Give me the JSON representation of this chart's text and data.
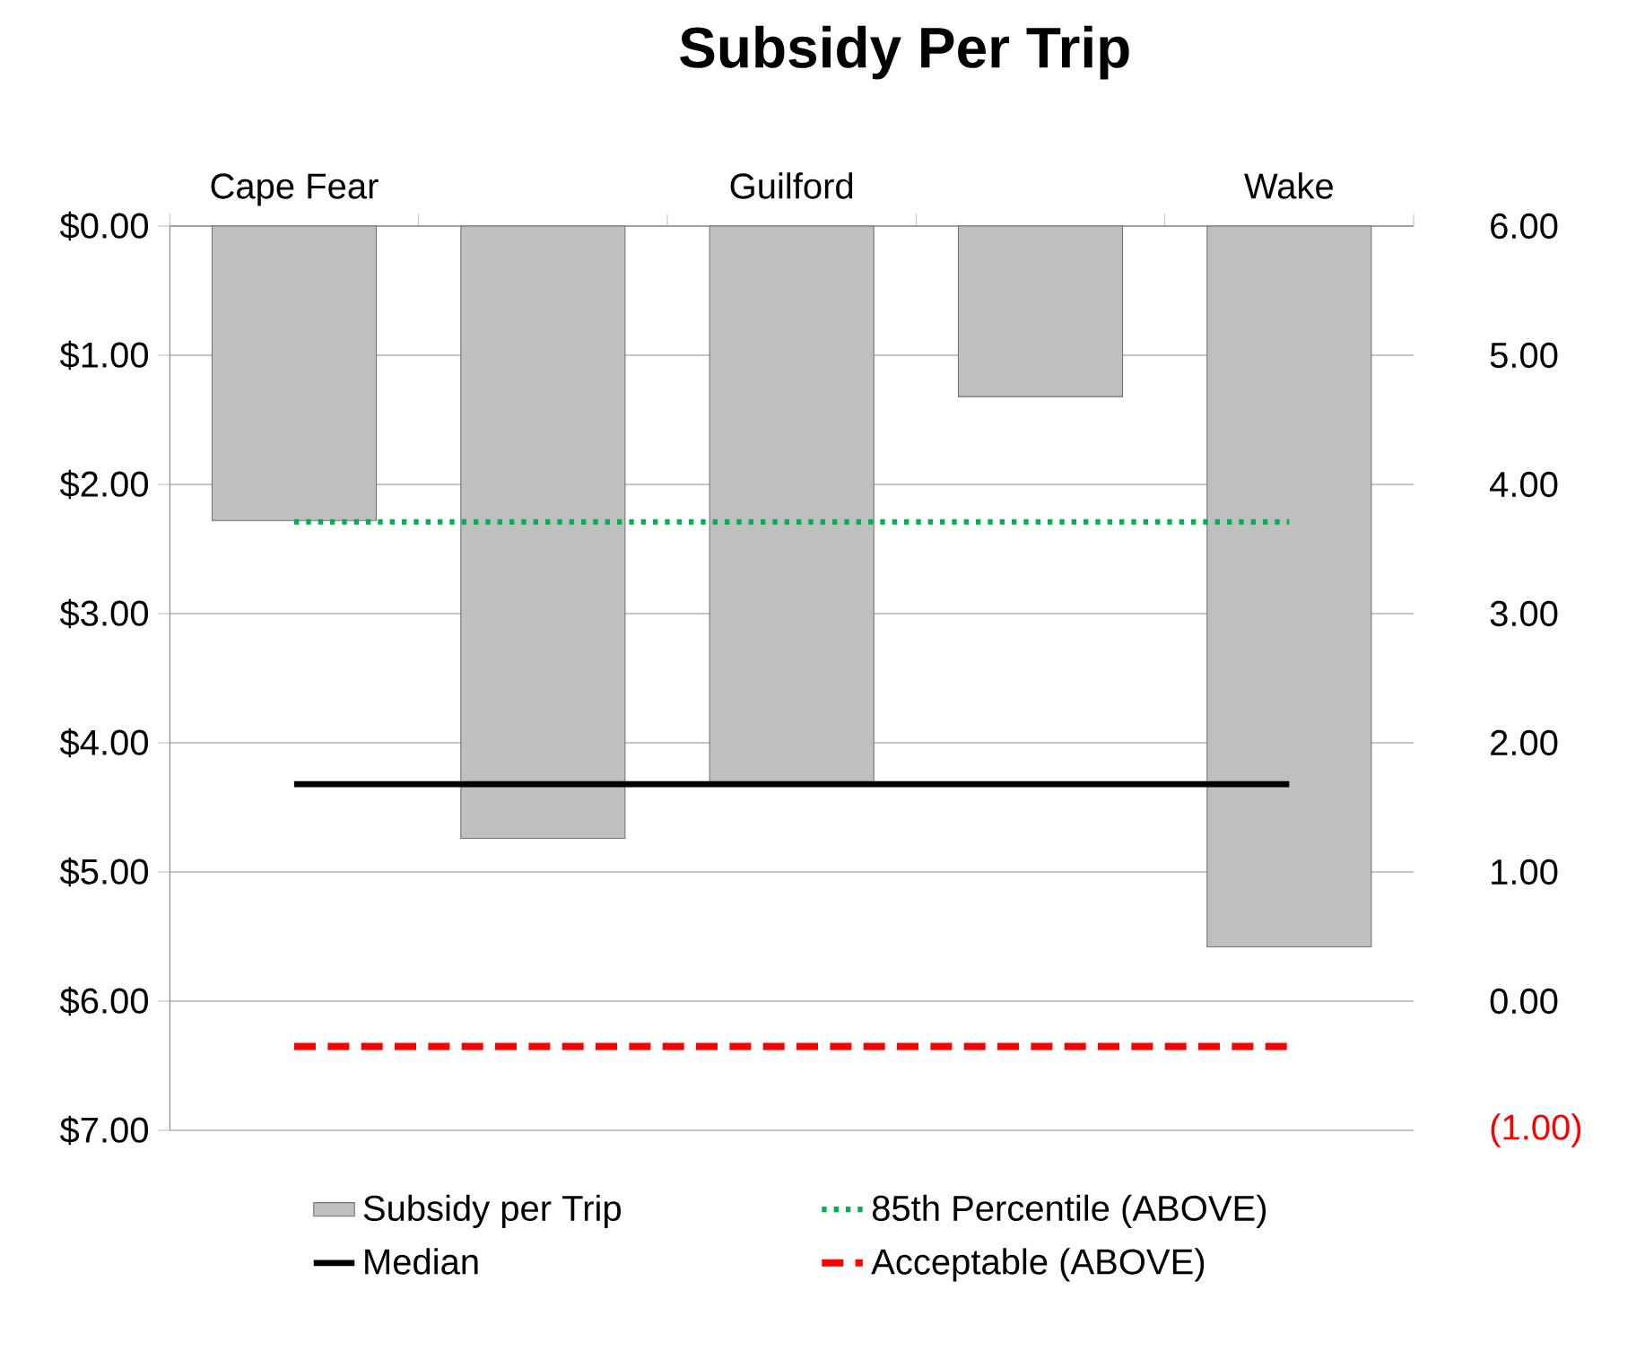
{
  "chart_data": {
    "type": "bar",
    "title": "Subsidy Per Trip",
    "categories": [
      "Cape Fear",
      null,
      "Guilford",
      null,
      "Wake"
    ],
    "series": [
      {
        "name": "Subsidy per Trip",
        "color": "#bfbfbf",
        "values": [
          2.28,
          4.74,
          4.31,
          1.32,
          5.58
        ]
      },
      {
        "name": "85th Percentile (ABOVE)",
        "type": "line",
        "line_style": "dotted",
        "color": "#00b050",
        "values": [
          2.29,
          2.29,
          2.29,
          2.29,
          2.29
        ]
      },
      {
        "name": "Median",
        "type": "line",
        "line_style": "solid",
        "color": "#000000",
        "values": [
          4.32,
          4.32,
          4.32,
          4.32,
          4.32
        ]
      },
      {
        "name": "Acceptable (ABOVE)",
        "type": "line",
        "line_style": "dashed",
        "color": "#ff0000",
        "values": [
          6.35,
          6.35,
          6.35,
          6.35,
          6.35
        ]
      }
    ],
    "ylim": [
      7,
      0
    ],
    "yticks": [
      {
        "value": 0,
        "label": "$0.00"
      },
      {
        "value": 1,
        "label": "$1.00"
      },
      {
        "value": 2,
        "label": "$2.00"
      },
      {
        "value": 3,
        "label": "$3.00"
      },
      {
        "value": 4,
        "label": "$4.00"
      },
      {
        "value": 5,
        "label": "$5.00"
      },
      {
        "value": 6,
        "label": "$6.00"
      },
      {
        "value": 7,
        "label": "$7.00"
      }
    ],
    "y2lim": [
      -1,
      6
    ],
    "y2ticks": [
      {
        "value": -1,
        "label": "(1.00)"
      },
      {
        "value": 0,
        "label": "0.00"
      },
      {
        "value": 1,
        "label": "1.00"
      },
      {
        "value": 2,
        "label": "2.00"
      },
      {
        "value": 3,
        "label": "3.00"
      },
      {
        "value": 4,
        "label": "4.00"
      },
      {
        "value": 5,
        "label": "5.00"
      },
      {
        "value": 6,
        "label": "6.00"
      }
    ],
    "grid": "y",
    "legend": "bottom"
  }
}
